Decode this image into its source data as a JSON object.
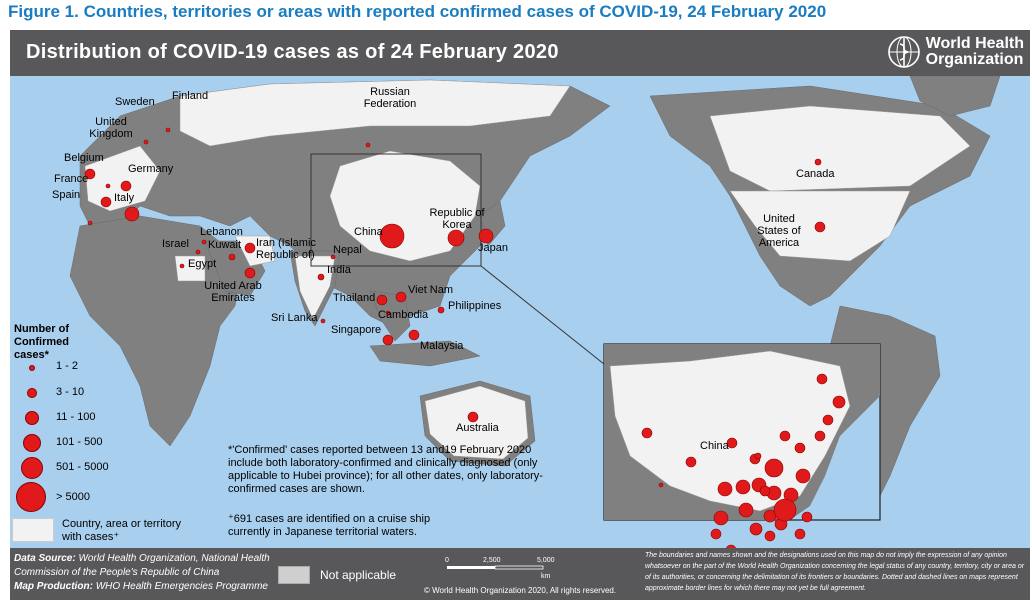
{
  "caption": "Figure 1. Countries, territories or areas with reported confirmed cases of COVID-19, 24 February 2020",
  "map_title": "Distribution of COVID-19 cases as of 24 February 2020",
  "logo_text": [
    "World Health",
    "Organization"
  ],
  "colors": {
    "ocean": "#a9cfee",
    "land": "#808080",
    "affected_land": "#f2f2f2",
    "case_dot": "#e01a1a",
    "header_bar": "#58585a",
    "caption": "#1a7cc1"
  },
  "country_labels": {
    "sweden": "Sweden",
    "finland": "Finland",
    "uk": "United Kingdom",
    "belgium": "Belgium",
    "germany": "Germany",
    "france": "France",
    "spain": "Spain",
    "italy": "Italy",
    "lebanon": "Lebanon",
    "kuwait": "Kuwait",
    "israel": "Israel",
    "egypt": "Egypt",
    "iran": "Iran (Islamic Republic of)",
    "uae": "United Arab Emirates",
    "nepal": "Nepal",
    "india": "India",
    "sri_lanka": "Sri Lanka",
    "russia": "Russian Federation",
    "china": "China",
    "korea": "Republic of Korea",
    "japan": "Japan",
    "thailand": "Thailand",
    "vietnam": "Viet Nam",
    "cambodia": "Cambodia",
    "philippines": "Philippines",
    "singapore": "Singapore",
    "malaysia": "Malaysia",
    "australia": "Australia",
    "canada": "Canada",
    "usa": "United States of America",
    "inset_china": "China"
  },
  "legend": {
    "title": "Number of Confirmed cases*",
    "classes": [
      "1 - 2",
      "3 - 10",
      "11 - 100",
      "101 - 500",
      "501 - 5000",
      "> 5000"
    ],
    "country_area": "Country, area or territory with cases⁺"
  },
  "notes": {
    "confirmed": "*'Confirmed' cases reported between 13 and19 February 2020 include both laboratory-confirmed and clinically diagnosed (only applicable to Hubei province); for all other dates, only laboratory-confirmed cases are shown.",
    "cruise": "⁺691 cases are identified on a cruise ship currently in Japanese territorial waters."
  },
  "footer": {
    "data_source_label": "Data Source",
    "data_source": "World Health Organization, National Health Commission of the People's Republic of China",
    "map_production_label": "Map Production",
    "map_production": "WHO Health Emergencies Programme",
    "not_applicable": "Not applicable",
    "scale_ticks": [
      "0",
      "2,500",
      "5,000"
    ],
    "scale_unit": "km",
    "copyright": "© World Health Organization 2020, All rights reserved.",
    "disclaimer": "The boundaries and names shown and the designations used on this map do not imply the expression of any opinion whatsoever on the part of the World Health Organization concerning the legal status of any country, territory, city or area or of its authorities, or concerning the delimitation of its frontiers or boundaries. Dotted and dashed lines on maps represent approximate border lines for which there may not yet be full agreement."
  }
}
